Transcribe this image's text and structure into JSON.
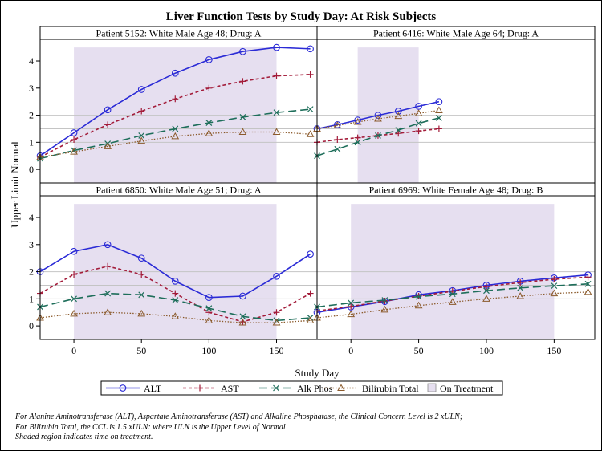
{
  "chart_data": {
    "type": "line",
    "title": "Liver Function Tests by Study Day: At Risk Subjects",
    "xlabel": "Study Day",
    "ylabel": "Upper Limit Normal",
    "xlim": [
      -25,
      180
    ],
    "ylim": [
      -0.5,
      4.8
    ],
    "xticks": [
      0,
      50,
      100,
      150
    ],
    "yticks": [
      0,
      1,
      2,
      3,
      4
    ],
    "reference_lines_y": [
      1,
      1.5,
      2
    ],
    "grid": false,
    "legend_position": "bottom",
    "series_styles": [
      {
        "name": "ALT",
        "color": "#2b2bd6",
        "dash": "",
        "marker": "circle"
      },
      {
        "name": "AST",
        "color": "#a31c3a",
        "dash": "4,3",
        "marker": "plus"
      },
      {
        "name": "Alk Phos",
        "color": "#1e6e5a",
        "dash": "10,5",
        "marker": "x"
      },
      {
        "name": "Bilirubin Total",
        "color": "#8b5a2b",
        "dash": "1.5,2",
        "marker": "triangle"
      }
    ],
    "shade_label": "On Treatment",
    "shade_color": "#e6dff0",
    "panels": [
      {
        "label": "Patient 5152: White Male Age 48; Drug: A",
        "shade": [
          0,
          150
        ],
        "x": [
          -25,
          0,
          25,
          50,
          75,
          100,
          125,
          150,
          175
        ],
        "series": [
          {
            "name": "ALT",
            "values": [
              0.5,
              1.35,
              2.2,
              2.95,
              3.55,
              4.05,
              4.35,
              4.5,
              4.45
            ]
          },
          {
            "name": "AST",
            "values": [
              0.45,
              1.1,
              1.65,
              2.15,
              2.6,
              3.0,
              3.25,
              3.45,
              3.5
            ]
          },
          {
            "name": "Alk Phos",
            "values": [
              0.4,
              0.7,
              0.95,
              1.25,
              1.5,
              1.72,
              1.93,
              2.1,
              2.22
            ]
          },
          {
            "name": "Bilirubin Total",
            "values": [
              0.45,
              0.65,
              0.85,
              1.05,
              1.22,
              1.33,
              1.38,
              1.38,
              1.3
            ]
          }
        ]
      },
      {
        "label": "Patient 6416: White Male Age 64; Drug: A",
        "shade": [
          5,
          50
        ],
        "x": [
          -25,
          -10,
          5,
          20,
          35,
          50,
          65
        ],
        "series": [
          {
            "name": "ALT",
            "values": [
              1.5,
              1.65,
              1.82,
              2.0,
              2.15,
              2.33,
              2.5
            ]
          },
          {
            "name": "AST",
            "values": [
              1.0,
              1.1,
              1.17,
              1.25,
              1.33,
              1.42,
              1.5
            ]
          },
          {
            "name": "Alk Phos",
            "values": [
              0.5,
              0.75,
              1.0,
              1.25,
              1.45,
              1.7,
              1.9
            ]
          },
          {
            "name": "Bilirubin Total",
            "values": [
              1.5,
              1.62,
              1.75,
              1.87,
              1.97,
              2.07,
              2.18
            ]
          }
        ]
      },
      {
        "label": "Patient 6850: White Male Age 51; Drug: A",
        "shade": [
          0,
          150
        ],
        "x": [
          -25,
          0,
          25,
          50,
          75,
          100,
          125,
          150,
          175
        ],
        "series": [
          {
            "name": "ALT",
            "values": [
              2.0,
              2.75,
              3.0,
              2.5,
              1.65,
              1.05,
              1.1,
              1.83,
              2.65
            ]
          },
          {
            "name": "AST",
            "values": [
              1.2,
              1.9,
              2.2,
              1.9,
              1.2,
              0.5,
              0.15,
              0.5,
              1.2
            ]
          },
          {
            "name": "Alk Phos",
            "values": [
              0.7,
              1.0,
              1.2,
              1.15,
              0.95,
              0.65,
              0.35,
              0.2,
              0.3
            ]
          },
          {
            "name": "Bilirubin Total",
            "values": [
              0.3,
              0.45,
              0.5,
              0.45,
              0.35,
              0.2,
              0.12,
              0.12,
              0.2
            ]
          }
        ]
      },
      {
        "label": "Patient 6969: White Female Age 48; Drug: B",
        "shade": [
          0,
          150
        ],
        "x": [
          -25,
          0,
          25,
          50,
          75,
          100,
          125,
          150,
          175
        ],
        "series": [
          {
            "name": "ALT",
            "values": [
              0.5,
              0.7,
              0.9,
              1.15,
              1.3,
              1.5,
              1.65,
              1.77,
              1.88
            ]
          },
          {
            "name": "AST",
            "values": [
              0.55,
              0.72,
              0.92,
              1.1,
              1.28,
              1.45,
              1.6,
              1.72,
              1.8
            ]
          },
          {
            "name": "Alk Phos",
            "values": [
              0.7,
              0.85,
              0.95,
              1.08,
              1.18,
              1.3,
              1.4,
              1.48,
              1.55
            ]
          },
          {
            "name": "Bilirubin Total",
            "values": [
              0.3,
              0.43,
              0.6,
              0.75,
              0.88,
              1.0,
              1.1,
              1.2,
              1.25
            ]
          }
        ]
      }
    ]
  },
  "footnotes": [
    "For Alanine Aminotransferase (ALT), Aspartate Aminotransferase (AST) and Alkaline Phosphatase, the Clinical Concern Level is 2 xULN;",
    "For Bilirubin Total, the CCL is 1.5 xULN: where ULN is the Upper Level of Normal",
    "Shaded region indicates time on treatment."
  ]
}
